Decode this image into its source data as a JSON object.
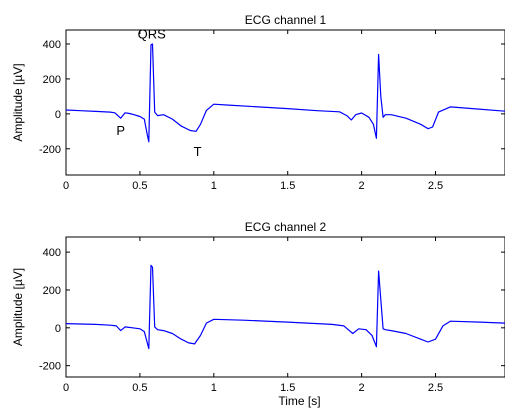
{
  "chart_data": [
    {
      "type": "line",
      "title": "ECG channel 1",
      "xlabel": "",
      "ylabel": "Amplitude [µV]",
      "xlim": [
        0,
        2.97
      ],
      "ylim": [
        -350,
        480
      ],
      "xticks": [
        0,
        0.5,
        1,
        1.5,
        2,
        2.5
      ],
      "xtick_labels": [
        "0",
        "0.5",
        "1",
        "1.5",
        "2",
        "2.5"
      ],
      "yticks": [
        -200,
        0,
        200,
        400
      ],
      "ytick_labels": [
        "-200",
        "0",
        "200",
        "400"
      ],
      "grid": false,
      "line_color": "#0000ff",
      "annotations": [
        {
          "text": "QRS",
          "x": 0.58,
          "y": 430
        },
        {
          "text": "P",
          "x": 0.37,
          "y": -120
        },
        {
          "text": "T",
          "x": 0.89,
          "y": -240
        }
      ],
      "series": [
        {
          "x": [
            0,
            0.1,
            0.2,
            0.3,
            0.33,
            0.37,
            0.4,
            0.43,
            0.46,
            0.5,
            0.53,
            0.55,
            0.56,
            0.575,
            0.585,
            0.6,
            0.62,
            0.66,
            0.72,
            0.78,
            0.84,
            0.88,
            0.91,
            0.95,
            1.0,
            1.1,
            1.3,
            1.5,
            1.7,
            1.85,
            1.9,
            1.93,
            1.96,
            2.0,
            2.05,
            2.08,
            2.1,
            2.115,
            2.13,
            2.145,
            2.16,
            2.2,
            2.3,
            2.4,
            2.45,
            2.48,
            2.52,
            2.6,
            2.75,
            2.97
          ],
          "y": [
            22,
            18,
            14,
            10,
            6,
            -25,
            6,
            2,
            -5,
            -15,
            -30,
            -120,
            -160,
            395,
            400,
            10,
            -10,
            -5,
            -30,
            -70,
            -95,
            -100,
            -60,
            20,
            55,
            50,
            40,
            30,
            18,
            12,
            -10,
            -35,
            -5,
            5,
            -20,
            -60,
            -140,
            340,
            100,
            -20,
            -5,
            -5,
            -25,
            -60,
            -85,
            -75,
            10,
            40,
            30,
            15
          ]
        }
      ]
    },
    {
      "type": "line",
      "title": "ECG channel 2",
      "xlabel": "Time [s]",
      "ylabel": "Amplitude [µV]",
      "xlim": [
        0,
        2.97
      ],
      "ylim": [
        -260,
        480
      ],
      "xticks": [
        0,
        0.5,
        1,
        1.5,
        2,
        2.5
      ],
      "xtick_labels": [
        "0",
        "0.5",
        "1",
        "1.5",
        "2",
        "2.5"
      ],
      "yticks": [
        -200,
        0,
        200,
        400
      ],
      "ytick_labels": [
        "-200",
        "0",
        "200",
        "400"
      ],
      "grid": false,
      "line_color": "#0000ff",
      "series": [
        {
          "x": [
            0,
            0.1,
            0.2,
            0.3,
            0.34,
            0.37,
            0.4,
            0.45,
            0.5,
            0.53,
            0.55,
            0.56,
            0.575,
            0.585,
            0.6,
            0.62,
            0.66,
            0.72,
            0.78,
            0.83,
            0.87,
            0.91,
            0.95,
            1.0,
            1.2,
            1.5,
            1.8,
            1.88,
            1.91,
            1.94,
            1.98,
            2.03,
            2.07,
            2.1,
            2.115,
            2.13,
            2.145,
            2.16,
            2.2,
            2.3,
            2.4,
            2.45,
            2.5,
            2.55,
            2.6,
            2.8,
            2.97
          ],
          "y": [
            22,
            20,
            18,
            14,
            10,
            -15,
            5,
            0,
            -5,
            -20,
            -80,
            -110,
            330,
            320,
            5,
            -10,
            -15,
            -30,
            -60,
            -80,
            -85,
            -40,
            25,
            45,
            40,
            30,
            18,
            10,
            -10,
            -30,
            -5,
            -10,
            -40,
            -100,
            300,
            150,
            -5,
            -10,
            -15,
            -30,
            -60,
            -75,
            -60,
            10,
            35,
            30,
            25
          ]
        }
      ]
    }
  ]
}
